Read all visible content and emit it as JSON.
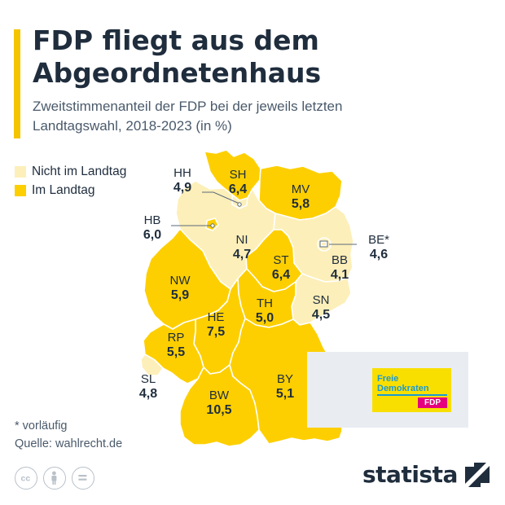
{
  "header": {
    "title": "FDP fliegt aus dem Abgeordnetenhaus",
    "subtitle": "Zweitstimmenanteil der FDP bei der jeweils letzten Landtagswahl, 2018-2023 (in %)"
  },
  "legend": {
    "items": [
      {
        "label": "Nicht im Landtag",
        "color": "#fdefb9"
      },
      {
        "label": "Im Landtag",
        "color": "#fdcf00"
      }
    ]
  },
  "map": {
    "states": [
      {
        "code": "SH",
        "value": "6,4",
        "in_parliament": true
      },
      {
        "code": "HH",
        "value": "4,9",
        "in_parliament": false
      },
      {
        "code": "MV",
        "value": "5,8",
        "in_parliament": true
      },
      {
        "code": "HB",
        "value": "6,0",
        "in_parliament": true
      },
      {
        "code": "NI",
        "value": "4,7",
        "in_parliament": false
      },
      {
        "code": "BE*",
        "value": "4,6",
        "in_parliament": false
      },
      {
        "code": "BB",
        "value": "4,1",
        "in_parliament": false
      },
      {
        "code": "ST",
        "value": "6,4",
        "in_parliament": true
      },
      {
        "code": "NW",
        "value": "5,9",
        "in_parliament": true
      },
      {
        "code": "TH",
        "value": "5,0",
        "in_parliament": true
      },
      {
        "code": "SN",
        "value": "4,5",
        "in_parliament": false
      },
      {
        "code": "HE",
        "value": "7,5",
        "in_parliament": true
      },
      {
        "code": "RP",
        "value": "5,5",
        "in_parliament": true
      },
      {
        "code": "SL",
        "value": "4,8",
        "in_parliament": false
      },
      {
        "code": "BW",
        "value": "10,5",
        "in_parliament": true
      },
      {
        "code": "BY",
        "value": "5,1",
        "in_parliament": true
      }
    ]
  },
  "ad": {
    "logo_line1": "Freie",
    "logo_line2": "Demokraten",
    "logo_badge": "FDP"
  },
  "footer": {
    "note": "* vorläufig",
    "source": "Quelle: wahlrecht.de",
    "brand": "statista",
    "license_icons": [
      "cc-icon",
      "person-icon",
      "equals-icon"
    ]
  }
}
